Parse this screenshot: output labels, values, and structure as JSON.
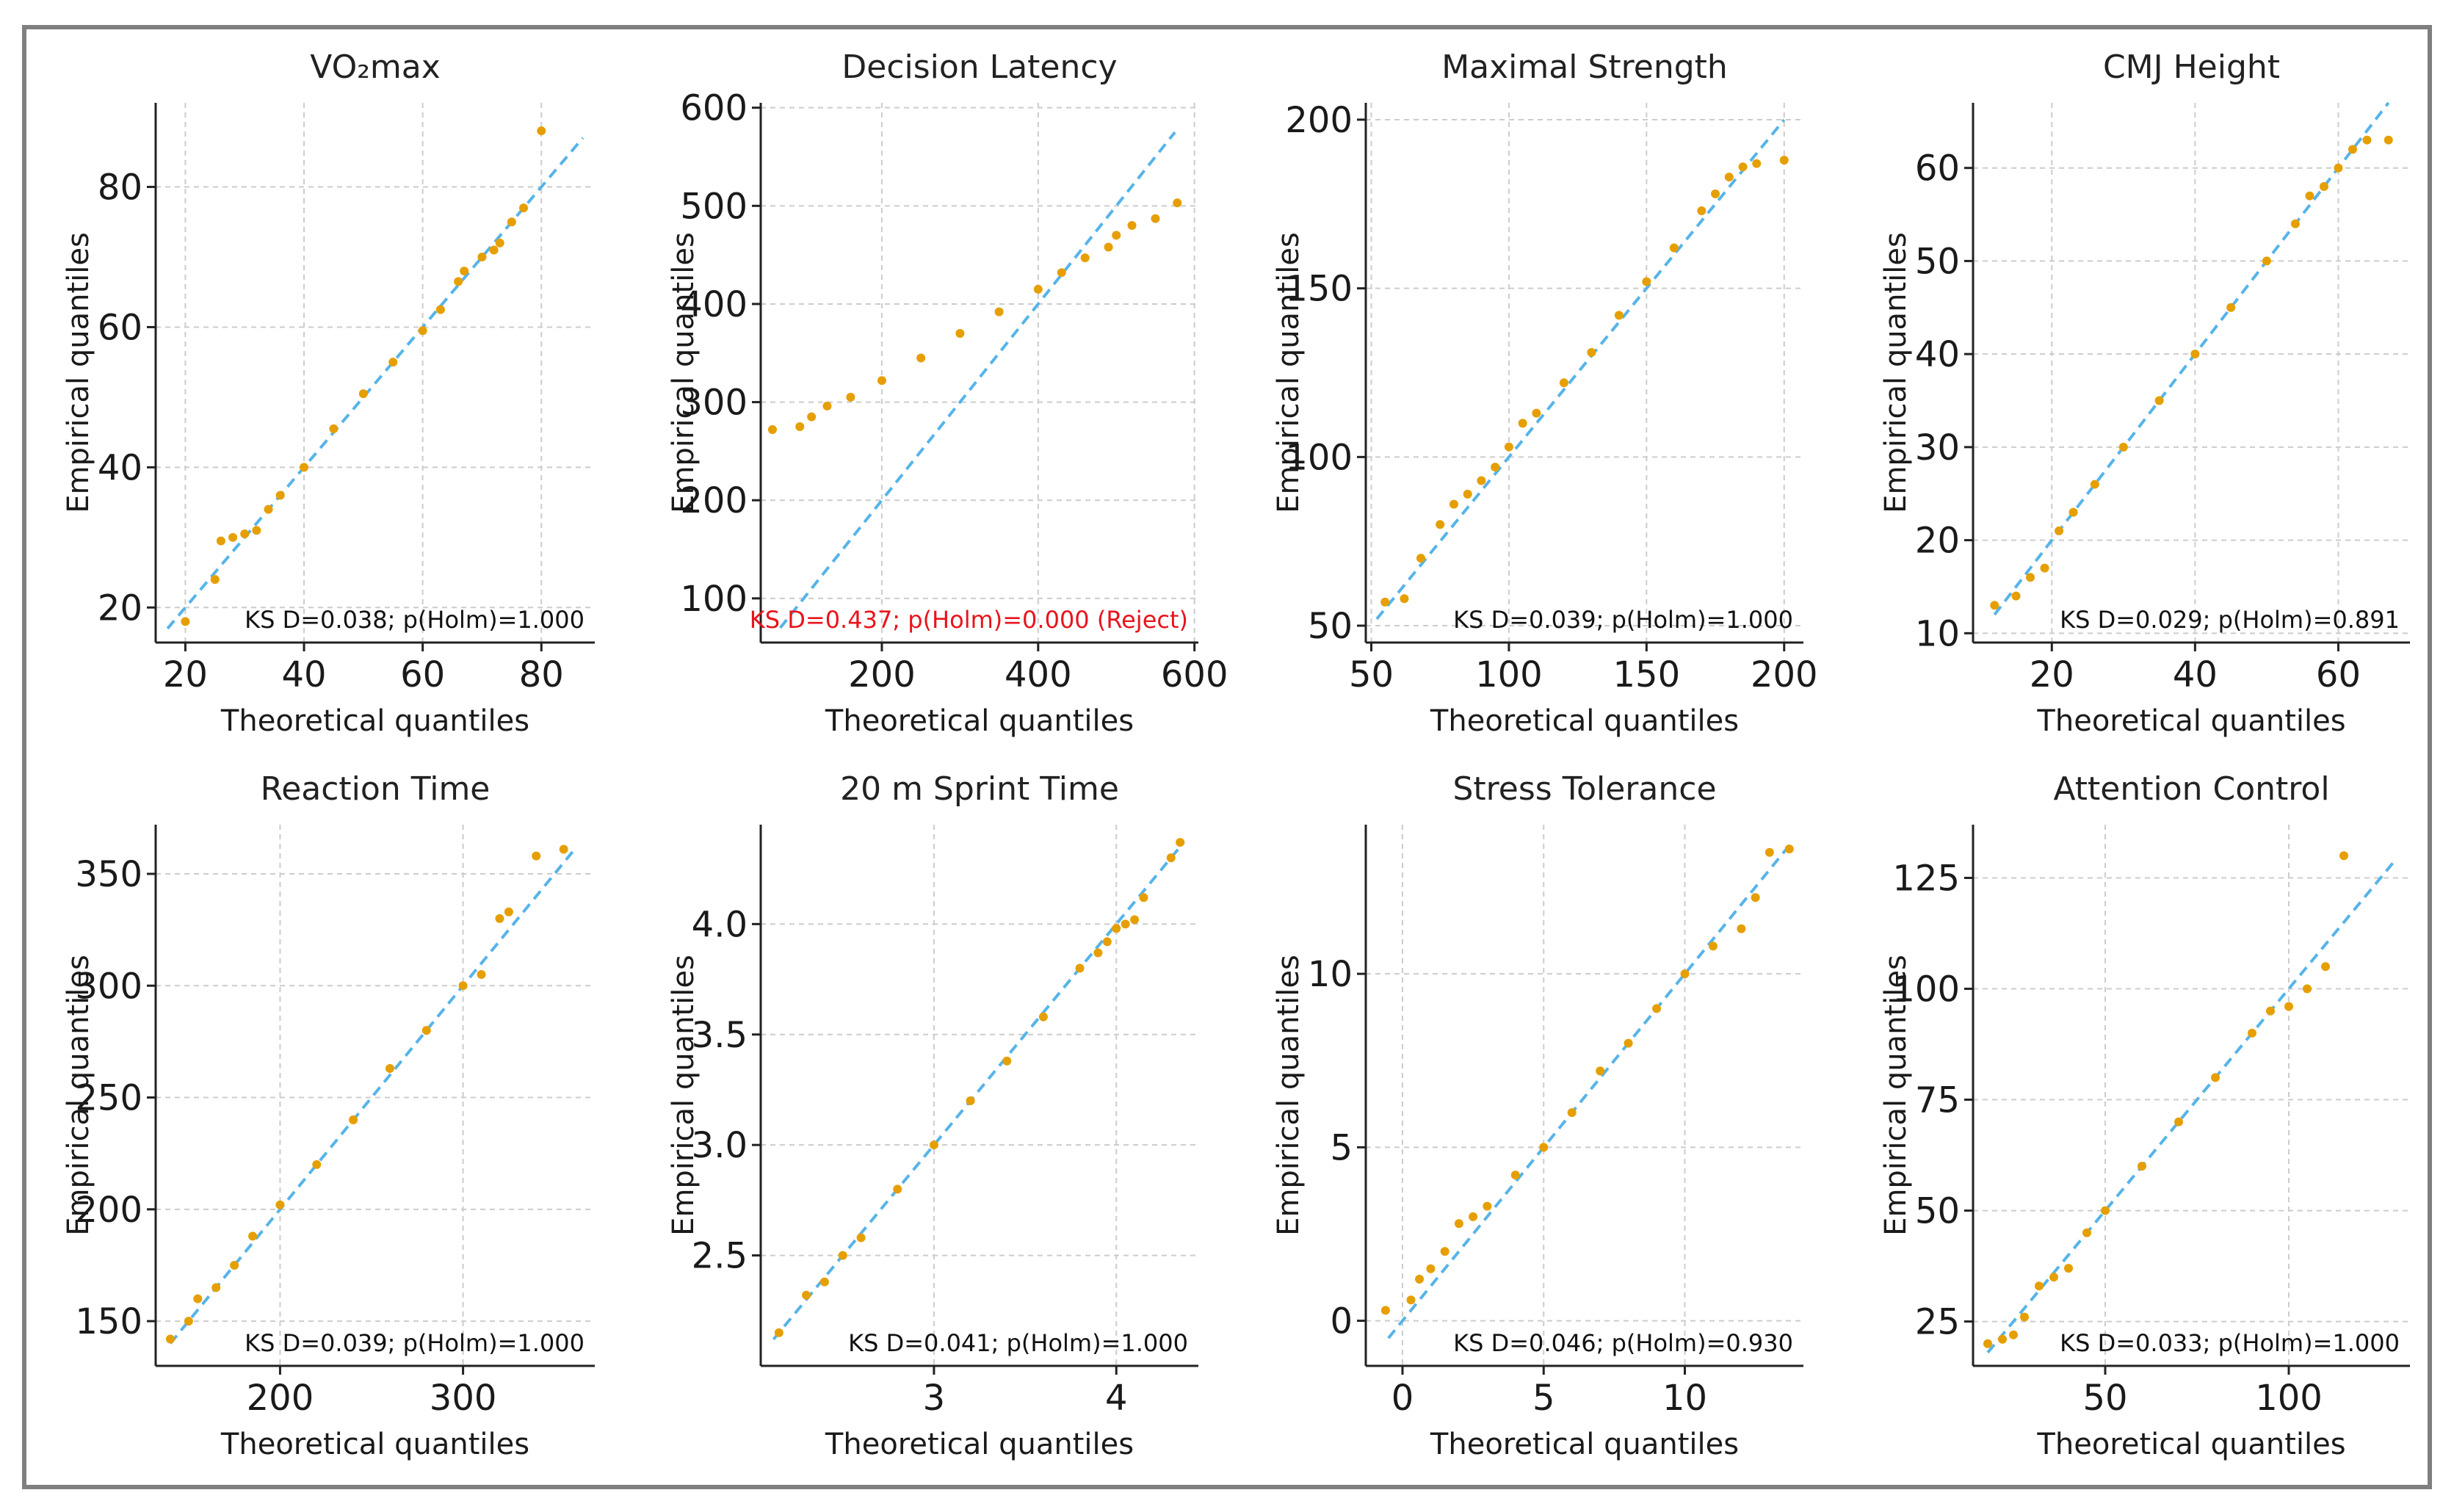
{
  "figure": {
    "colors": {
      "points": "#E69F00",
      "refline": "#56B4E9",
      "grid": "#cccccc",
      "axis": "#222222",
      "reject": "#e8141c"
    }
  },
  "chart_data": [
    {
      "type": "scatter",
      "title": "VO₂max",
      "xlabel": "Theoretical quantiles",
      "ylabel": "Empirical quantiles",
      "xlim": [
        15,
        89
      ],
      "ylim": [
        15,
        92
      ],
      "xticks": [
        20,
        40,
        60,
        80
      ],
      "yticks": [
        20,
        40,
        60,
        80
      ],
      "ks_text": "KS D=0.038; p(Holm)=1.000",
      "reject": false,
      "refline": [
        [
          17,
          17
        ],
        [
          87,
          87
        ]
      ],
      "points": [
        [
          20,
          18
        ],
        [
          25,
          24
        ],
        [
          26,
          29.5
        ],
        [
          28,
          30
        ],
        [
          30,
          30.5
        ],
        [
          32,
          31
        ],
        [
          34,
          34
        ],
        [
          36,
          36
        ],
        [
          40,
          40
        ],
        [
          45,
          45.5
        ],
        [
          50,
          50.5
        ],
        [
          55,
          55
        ],
        [
          60,
          59.5
        ],
        [
          63,
          62.5
        ],
        [
          66,
          66.5
        ],
        [
          67,
          68
        ],
        [
          70,
          70
        ],
        [
          72,
          71
        ],
        [
          73,
          72
        ],
        [
          75,
          75
        ],
        [
          77,
          77
        ],
        [
          80,
          88
        ]
      ]
    },
    {
      "type": "scatter",
      "title": "Decision Latency",
      "xlabel": "Theoretical quantiles",
      "ylabel": "Empirical quantiles",
      "xlim": [
        45,
        605
      ],
      "ylim": [
        55,
        605
      ],
      "xticks": [
        200,
        400,
        600
      ],
      "yticks": [
        100,
        200,
        300,
        400,
        500,
        600
      ],
      "ks_text": "KS D=0.437; p(Holm)=0.000  (Reject)",
      "reject": true,
      "refline": [
        [
          70,
          70
        ],
        [
          575,
          575
        ]
      ],
      "points": [
        [
          60,
          272
        ],
        [
          95,
          275
        ],
        [
          110,
          285
        ],
        [
          130,
          296
        ],
        [
          160,
          305
        ],
        [
          200,
          322
        ],
        [
          250,
          345
        ],
        [
          300,
          370
        ],
        [
          350,
          392
        ],
        [
          400,
          415
        ],
        [
          430,
          432
        ],
        [
          460,
          447
        ],
        [
          490,
          458
        ],
        [
          500,
          470
        ],
        [
          520,
          480
        ],
        [
          550,
          487
        ],
        [
          578,
          503
        ]
      ]
    },
    {
      "type": "scatter",
      "title": "Maximal Strength",
      "xlabel": "Theoretical quantiles",
      "ylabel": "Empirical quantiles",
      "xlim": [
        48,
        207
      ],
      "ylim": [
        45,
        205
      ],
      "xticks": [
        50,
        100,
        150,
        200
      ],
      "yticks": [
        50,
        100,
        150,
        200
      ],
      "ks_text": "KS D=0.039; p(Holm)=1.000",
      "reject": false,
      "refline": [
        [
          52,
          52
        ],
        [
          200,
          200
        ]
      ],
      "points": [
        [
          55,
          57
        ],
        [
          62,
          58
        ],
        [
          68,
          70
        ],
        [
          75,
          80
        ],
        [
          80,
          86
        ],
        [
          85,
          89
        ],
        [
          90,
          93
        ],
        [
          95,
          97
        ],
        [
          100,
          103
        ],
        [
          105,
          110
        ],
        [
          110,
          113
        ],
        [
          120,
          122
        ],
        [
          130,
          131
        ],
        [
          140,
          142
        ],
        [
          150,
          152
        ],
        [
          160,
          162
        ],
        [
          170,
          173
        ],
        [
          175,
          178
        ],
        [
          180,
          183
        ],
        [
          185,
          186
        ],
        [
          190,
          187
        ],
        [
          200,
          188
        ]
      ]
    },
    {
      "type": "scatter",
      "title": "CMJ Height",
      "xlabel": "Theoretical quantiles",
      "ylabel": "Empirical quantiles",
      "xlim": [
        9,
        70
      ],
      "ylim": [
        9,
        67
      ],
      "xticks": [
        20,
        40,
        60
      ],
      "yticks": [
        10,
        20,
        30,
        40,
        50,
        60
      ],
      "ks_text": "KS D=0.029; p(Holm)=0.891",
      "reject": false,
      "refline": [
        [
          12,
          12
        ],
        [
          67,
          67
        ]
      ],
      "points": [
        [
          12,
          13
        ],
        [
          15,
          14
        ],
        [
          17,
          16
        ],
        [
          19,
          17
        ],
        [
          21,
          21
        ],
        [
          23,
          23
        ],
        [
          26,
          26
        ],
        [
          30,
          30
        ],
        [
          35,
          35
        ],
        [
          40,
          40
        ],
        [
          45,
          45
        ],
        [
          50,
          50
        ],
        [
          54,
          54
        ],
        [
          56,
          57
        ],
        [
          58,
          58
        ],
        [
          60,
          60
        ],
        [
          62,
          62
        ],
        [
          64,
          63
        ],
        [
          67,
          63
        ]
      ]
    },
    {
      "type": "scatter",
      "title": "Reaction Time",
      "xlabel": "Theoretical quantiles",
      "ylabel": "Empirical quantiles",
      "xlim": [
        132,
        372
      ],
      "ylim": [
        130,
        372
      ],
      "xticks": [
        200,
        300
      ],
      "yticks": [
        150,
        200,
        250,
        300,
        350
      ],
      "ks_text": "KS D=0.039; p(Holm)=1.000",
      "reject": false,
      "refline": [
        [
          140,
          140
        ],
        [
          360,
          360
        ]
      ],
      "points": [
        [
          140,
          142
        ],
        [
          150,
          150
        ],
        [
          155,
          160
        ],
        [
          165,
          165
        ],
        [
          175,
          175
        ],
        [
          185,
          188
        ],
        [
          200,
          202
        ],
        [
          220,
          220
        ],
        [
          240,
          240
        ],
        [
          260,
          263
        ],
        [
          280,
          280
        ],
        [
          300,
          300
        ],
        [
          310,
          305
        ],
        [
          320,
          330
        ],
        [
          325,
          333
        ],
        [
          340,
          358
        ],
        [
          355,
          361
        ]
      ]
    },
    {
      "type": "scatter",
      "title": "20 m Sprint Time",
      "xlabel": "Theoretical quantiles",
      "ylabel": "Empirical quantiles",
      "xlim": [
        2.05,
        4.45
      ],
      "ylim": [
        2.0,
        4.45
      ],
      "xticks": [
        3,
        4
      ],
      "yticks": [
        2.5,
        3.0,
        3.5,
        4.0
      ],
      "ks_text": "KS D=0.041; p(Holm)=1.000",
      "reject": false,
      "refline": [
        [
          2.12,
          2.12
        ],
        [
          4.37,
          4.37
        ]
      ],
      "points": [
        [
          2.15,
          2.15
        ],
        [
          2.3,
          2.32
        ],
        [
          2.4,
          2.38
        ],
        [
          2.5,
          2.5
        ],
        [
          2.6,
          2.58
        ],
        [
          2.8,
          2.8
        ],
        [
          3.0,
          3.0
        ],
        [
          3.2,
          3.2
        ],
        [
          3.4,
          3.38
        ],
        [
          3.6,
          3.58
        ],
        [
          3.8,
          3.8
        ],
        [
          3.9,
          3.87
        ],
        [
          3.95,
          3.92
        ],
        [
          4.0,
          3.98
        ],
        [
          4.05,
          4.0
        ],
        [
          4.1,
          4.02
        ],
        [
          4.15,
          4.12
        ],
        [
          4.3,
          4.3
        ],
        [
          4.35,
          4.37
        ]
      ]
    },
    {
      "type": "scatter",
      "title": "Stress Tolerance",
      "xlabel": "Theoretical quantiles",
      "ylabel": "Empirical quantiles",
      "xlim": [
        -1.3,
        14.2
      ],
      "ylim": [
        -1.3,
        14.3
      ],
      "xticks": [
        0,
        5,
        10
      ],
      "yticks": [
        0,
        5,
        10
      ],
      "ks_text": "KS D=0.046; p(Holm)=0.930",
      "reject": false,
      "refline": [
        [
          -0.5,
          -0.5
        ],
        [
          13.8,
          13.8
        ]
      ],
      "points": [
        [
          -0.6,
          0.3
        ],
        [
          0.3,
          0.6
        ],
        [
          0.6,
          1.2
        ],
        [
          1.0,
          1.5
        ],
        [
          1.5,
          2.0
        ],
        [
          2.0,
          2.8
        ],
        [
          2.5,
          3.0
        ],
        [
          3.0,
          3.3
        ],
        [
          4.0,
          4.2
        ],
        [
          5.0,
          5.0
        ],
        [
          6.0,
          6.0
        ],
        [
          7.0,
          7.2
        ],
        [
          8.0,
          8.0
        ],
        [
          9.0,
          9.0
        ],
        [
          10.0,
          10.0
        ],
        [
          11.0,
          10.8
        ],
        [
          12.0,
          11.3
        ],
        [
          12.5,
          12.2
        ],
        [
          13.0,
          13.5
        ],
        [
          13.7,
          13.6
        ]
      ]
    },
    {
      "type": "scatter",
      "title": "Attention Control",
      "xlabel": "Theoretical quantiles",
      "ylabel": "Empirical quantiles",
      "xlim": [
        14,
        133
      ],
      "ylim": [
        15,
        137
      ],
      "xticks": [
        50,
        100
      ],
      "yticks": [
        25,
        50,
        75,
        100,
        125
      ],
      "ks_text": "KS D=0.033; p(Holm)=1.000",
      "reject": false,
      "refline": [
        [
          18,
          18
        ],
        [
          129,
          129
        ]
      ],
      "points": [
        [
          18,
          20
        ],
        [
          22,
          21
        ],
        [
          25,
          22
        ],
        [
          28,
          26
        ],
        [
          32,
          33
        ],
        [
          36,
          35
        ],
        [
          40,
          37
        ],
        [
          45,
          45
        ],
        [
          50,
          50
        ],
        [
          60,
          60
        ],
        [
          70,
          70
        ],
        [
          80,
          80
        ],
        [
          90,
          90
        ],
        [
          95,
          95
        ],
        [
          100,
          96
        ],
        [
          105,
          100
        ],
        [
          110,
          105
        ],
        [
          115,
          130
        ]
      ]
    }
  ]
}
